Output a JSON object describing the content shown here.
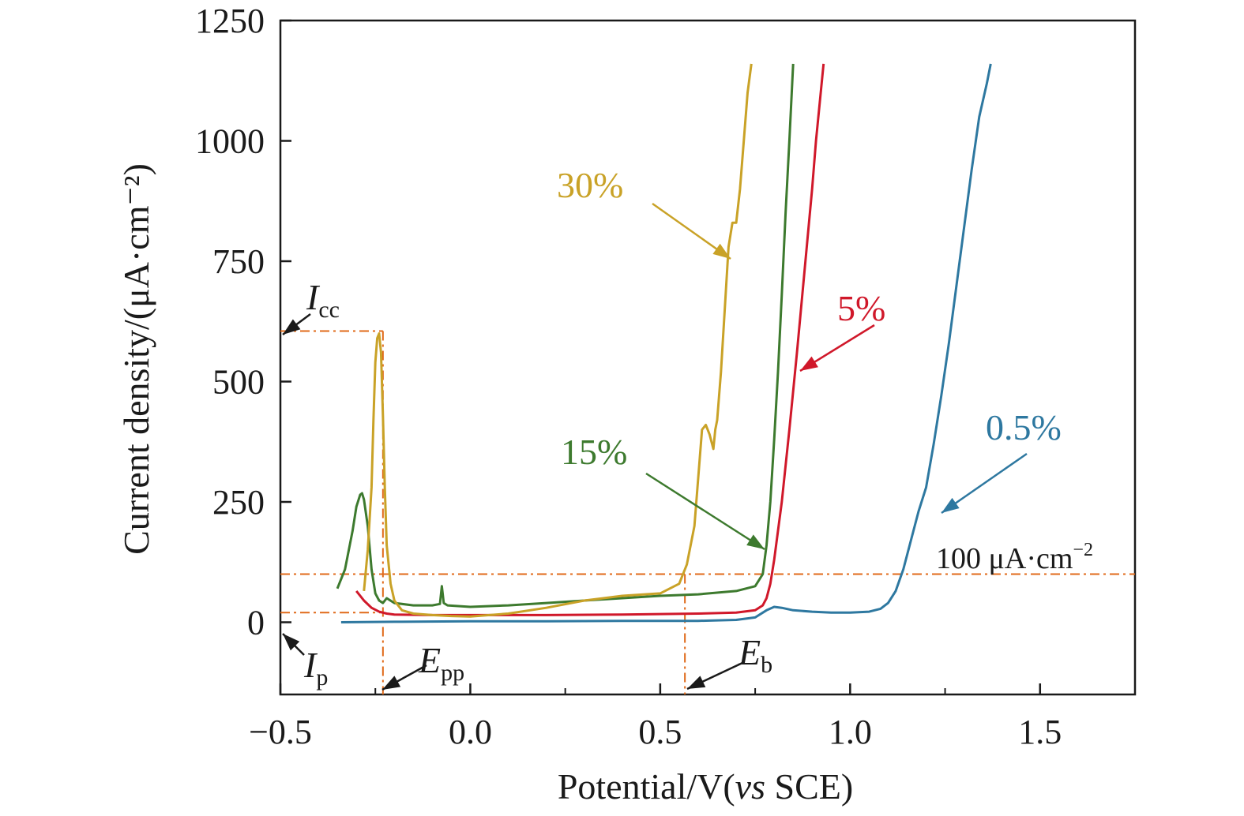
{
  "chart_data": {
    "type": "line",
    "title": "",
    "xlabel_prefix": "Potential/V(",
    "xlabel_italic": "vs",
    "xlabel_suffix": " SCE)",
    "ylabel": "Current density/(μA·cm⁻²)",
    "xlim": [
      -0.5,
      1.75
    ],
    "ylim": [
      -150,
      1250
    ],
    "xticks": [
      -0.5,
      0.0,
      0.5,
      1.0,
      1.5
    ],
    "xtick_labels": [
      "−0.5",
      "0.0",
      "0.5",
      "1.0",
      "1.5"
    ],
    "yticks": [
      0,
      250,
      500,
      750,
      1000,
      1250
    ],
    "ytick_labels": [
      "0",
      "250",
      "500",
      "750",
      "1000",
      "1250"
    ],
    "grid": false,
    "series": [
      {
        "name": "30%",
        "color": "#c9a227",
        "x": [
          -0.28,
          -0.27,
          -0.26,
          -0.255,
          -0.25,
          -0.245,
          -0.24,
          -0.235,
          -0.23,
          -0.225,
          -0.22,
          -0.21,
          -0.2,
          -0.18,
          -0.15,
          -0.1,
          -0.05,
          0.0,
          0.1,
          0.2,
          0.3,
          0.4,
          0.5,
          0.55,
          0.57,
          0.59,
          0.6,
          0.61,
          0.62,
          0.63,
          0.64,
          0.645,
          0.65,
          0.66,
          0.67,
          0.68,
          0.69,
          0.7,
          0.71,
          0.72,
          0.73,
          0.74
        ],
        "y": [
          65,
          150,
          280,
          420,
          540,
          590,
          600,
          560,
          430,
          280,
          160,
          80,
          45,
          25,
          18,
          15,
          13,
          12,
          18,
          30,
          45,
          55,
          60,
          80,
          120,
          200,
          300,
          400,
          410,
          390,
          360,
          400,
          420,
          520,
          650,
          780,
          830,
          830,
          900,
          1000,
          1100,
          1160
        ]
      },
      {
        "name": "15%",
        "color": "#3d7a2e",
        "x": [
          -0.35,
          -0.33,
          -0.31,
          -0.3,
          -0.29,
          -0.285,
          -0.28,
          -0.27,
          -0.26,
          -0.25,
          -0.24,
          -0.23,
          -0.22,
          -0.2,
          -0.15,
          -0.1,
          -0.08,
          -0.075,
          -0.07,
          -0.06,
          0.0,
          0.1,
          0.2,
          0.3,
          0.4,
          0.5,
          0.6,
          0.7,
          0.75,
          0.77,
          0.78,
          0.79,
          0.8,
          0.81,
          0.82,
          0.83,
          0.84,
          0.85
        ],
        "y": [
          70,
          110,
          190,
          240,
          265,
          268,
          255,
          200,
          110,
          60,
          45,
          40,
          50,
          40,
          35,
          35,
          38,
          75,
          40,
          35,
          32,
          35,
          40,
          45,
          50,
          55,
          58,
          65,
          75,
          100,
          160,
          250,
          380,
          520,
          680,
          850,
          1000,
          1160
        ]
      },
      {
        "name": "5%",
        "color": "#d0182a",
        "x": [
          -0.3,
          -0.28,
          -0.26,
          -0.24,
          -0.22,
          -0.2,
          -0.1,
          0.0,
          0.2,
          0.4,
          0.6,
          0.7,
          0.75,
          0.77,
          0.78,
          0.79,
          0.8,
          0.82,
          0.84,
          0.86,
          0.88,
          0.9,
          0.91,
          0.92,
          0.93
        ],
        "y": [
          65,
          45,
          30,
          22,
          18,
          16,
          15,
          15,
          15,
          16,
          18,
          20,
          25,
          35,
          50,
          80,
          130,
          250,
          400,
          560,
          730,
          900,
          1000,
          1080,
          1160
        ]
      },
      {
        "name": "0.5%",
        "color": "#2e78a0",
        "x": [
          -0.34,
          -0.2,
          0.0,
          0.2,
          0.4,
          0.6,
          0.7,
          0.75,
          0.78,
          0.8,
          0.82,
          0.85,
          0.9,
          0.95,
          1.0,
          1.05,
          1.08,
          1.1,
          1.12,
          1.14,
          1.16,
          1.18,
          1.2,
          1.22,
          1.24,
          1.26,
          1.28,
          1.3,
          1.32,
          1.34,
          1.36,
          1.37
        ],
        "y": [
          0,
          1,
          2,
          2,
          3,
          3,
          5,
          10,
          25,
          32,
          30,
          25,
          22,
          20,
          20,
          22,
          28,
          40,
          65,
          110,
          170,
          230,
          280,
          370,
          470,
          580,
          700,
          820,
          940,
          1050,
          1120,
          1160
        ]
      }
    ],
    "reference_lines": {
      "hundred_line_value": 100,
      "hundred_line_label_num": "100 μA·cm",
      "hundred_line_label_exp": "−2",
      "icc_value": 605,
      "ip_value": 20,
      "epp_value": -0.23,
      "eb_value": 0.565,
      "color": "#e06a1a"
    },
    "annotations": {
      "icc": {
        "main": "I",
        "sub": "cc"
      },
      "ip": {
        "main": "I",
        "sub": "p"
      },
      "epp": {
        "main": "E",
        "sub": "pp"
      },
      "eb": {
        "main": "E",
        "sub": "b"
      }
    }
  }
}
